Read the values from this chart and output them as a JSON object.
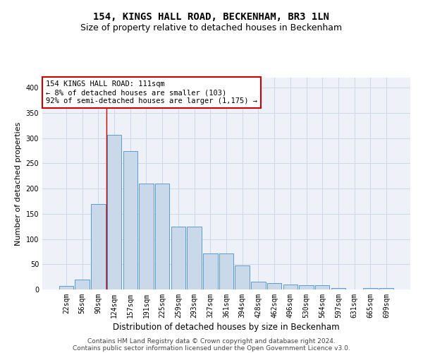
{
  "title_line1": "154, KINGS HALL ROAD, BECKENHAM, BR3 1LN",
  "title_line2": "Size of property relative to detached houses in Beckenham",
  "xlabel": "Distribution of detached houses by size in Beckenham",
  "ylabel": "Number of detached properties",
  "bar_labels": [
    "22sqm",
    "56sqm",
    "90sqm",
    "124sqm",
    "157sqm",
    "191sqm",
    "225sqm",
    "259sqm",
    "293sqm",
    "327sqm",
    "361sqm",
    "394sqm",
    "428sqm",
    "462sqm",
    "496sqm",
    "530sqm",
    "564sqm",
    "597sqm",
    "631sqm",
    "665sqm",
    "699sqm"
  ],
  "bar_values": [
    7,
    20,
    170,
    307,
    275,
    210,
    210,
    125,
    125,
    72,
    72,
    47,
    15,
    13,
    10,
    8,
    8,
    3,
    0,
    3,
    3
  ],
  "bar_color": "#c9d9ea",
  "bar_edge_color": "#5b9bd5",
  "property_line_x": 2.5,
  "annotation_text": "154 KINGS HALL ROAD: 111sqm\n← 8% of detached houses are smaller (103)\n92% of semi-detached houses are larger (1,175) →",
  "annotation_box_color": "#ffffff",
  "annotation_box_edge_color": "#cc0000",
  "vline_color": "#cc0000",
  "ylim": [
    0,
    420
  ],
  "yticks": [
    0,
    50,
    100,
    150,
    200,
    250,
    300,
    350,
    400
  ],
  "grid_color": "#d0d8e8",
  "background_color": "#eef2f8",
  "footer_line1": "Contains HM Land Registry data © Crown copyright and database right 2024.",
  "footer_line2": "Contains public sector information licensed under the Open Government Licence v3.0.",
  "title_fontsize": 10,
  "subtitle_fontsize": 9,
  "xlabel_fontsize": 8.5,
  "ylabel_fontsize": 8,
  "tick_fontsize": 7,
  "footer_fontsize": 6.5,
  "annotation_fontsize": 7.5
}
